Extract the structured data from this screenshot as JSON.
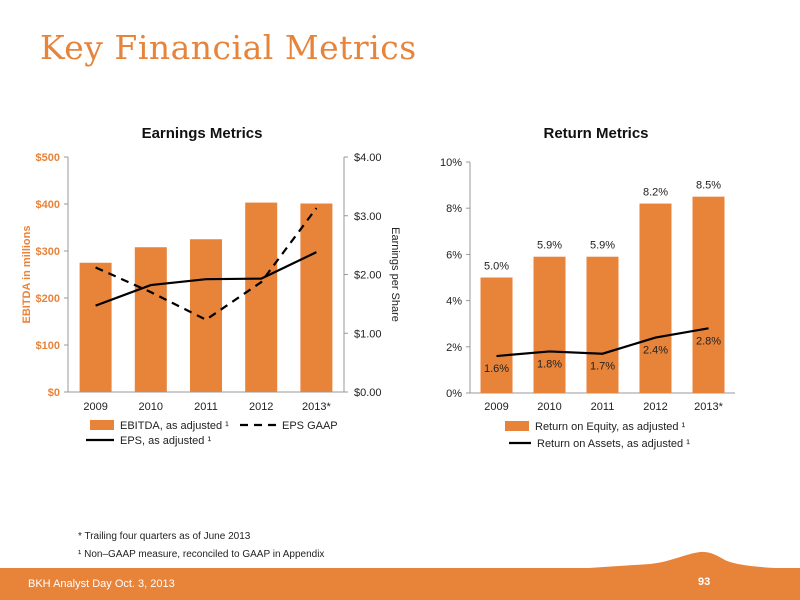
{
  "slide": {
    "title": "Key Financial Metrics",
    "footer_text": "BKH Analyst Day  Oct. 3, 2013",
    "page_number": "93",
    "footnote_1": "* Trailing four quarters as of June 2013",
    "footnote_2": "¹ Non–GAAP measure, reconciled to GAAP in Appendix"
  },
  "colors": {
    "accent": "#e8833a",
    "bar": "#e8833a",
    "line": "#000000"
  },
  "chart_data": [
    {
      "type": "bar",
      "title": "Earnings Metrics",
      "categories": [
        "2009",
        "2010",
        "2011",
        "2012",
        "2013*"
      ],
      "ylabel": "EBITDA in millions",
      "y2label": "Earnings per Share",
      "ylim": [
        0,
        500
      ],
      "y2lim": [
        0,
        4
      ],
      "yticks": [
        "$0",
        "$100",
        "$200",
        "$300",
        "$400",
        "$500"
      ],
      "y2ticks": [
        "$0.00",
        "$1.00",
        "$2.00",
        "$3.00",
        "$4.00"
      ],
      "series": [
        {
          "name": "EBITDA, as adjusted ¹",
          "type": "bar",
          "axis": "left",
          "values": [
            275,
            308,
            325,
            403,
            401
          ]
        },
        {
          "name": "EPS, as adjusted ¹",
          "type": "line",
          "style": "solid",
          "axis": "right",
          "values": [
            1.47,
            1.82,
            1.92,
            1.93,
            2.38
          ]
        },
        {
          "name": "EPS GAAP",
          "type": "line",
          "style": "dashed",
          "axis": "right",
          "values": [
            2.12,
            1.7,
            1.23,
            1.87,
            3.13
          ]
        }
      ],
      "legend": "bottom",
      "grid": false
    },
    {
      "type": "bar",
      "title": "Return Metrics",
      "categories": [
        "2009",
        "2010",
        "2011",
        "2012",
        "2013*"
      ],
      "ylim": [
        0,
        10
      ],
      "yticks": [
        "0%",
        "2%",
        "4%",
        "6%",
        "8%",
        "10%"
      ],
      "series": [
        {
          "name": "Return on Equity, as adjusted ¹",
          "type": "bar",
          "values": [
            5.0,
            5.9,
            5.9,
            8.2,
            8.5
          ],
          "labels": [
            "5.0%",
            "5.9%",
            "5.9%",
            "8.2%",
            "8.5%"
          ]
        },
        {
          "name": "Return on Assets, as adjusted ¹",
          "type": "line",
          "style": "solid",
          "values": [
            1.6,
            1.8,
            1.7,
            2.4,
            2.8
          ],
          "labels": [
            "1.6%",
            "1.8%",
            "1.7%",
            "2.4%",
            "2.8%"
          ]
        }
      ],
      "legend": "bottom",
      "grid": false
    }
  ]
}
